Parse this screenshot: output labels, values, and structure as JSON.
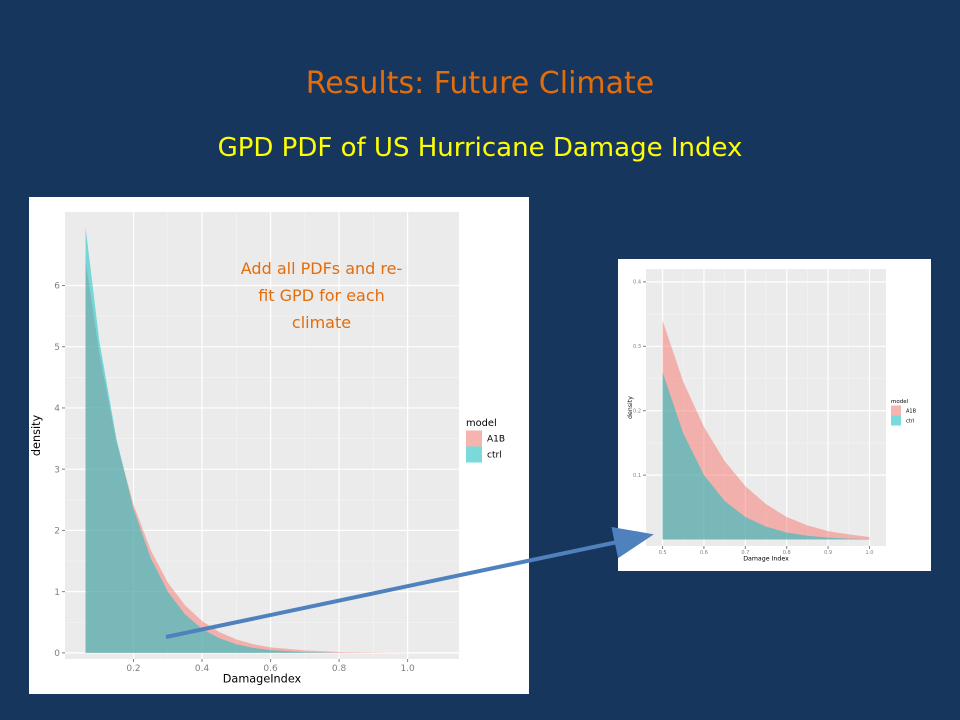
{
  "slide": {
    "title": "Results: Future Climate",
    "subtitle": "GPD PDF of US Hurricane Damage Index",
    "annotation": "Add all PDFs and re-fit GPD for each climate",
    "background": "#17365d",
    "title_color": "#e46c0a",
    "subtitle_color": "#ffff00",
    "arrow_color": "#4f81bd"
  },
  "chart_data": [
    {
      "type": "area",
      "title": "",
      "xlabel": "DamageIndex",
      "ylabel": "density",
      "xlim": [
        0.0,
        1.15
      ],
      "ylim": [
        -0.1,
        7.2
      ],
      "xticks": [
        "0.2",
        "0.4",
        "0.6",
        "0.8",
        "1.0"
      ],
      "xtick_values": [
        0.2,
        0.4,
        0.6,
        0.8,
        1.0
      ],
      "yticks": [
        "0",
        "1",
        "2",
        "3",
        "4",
        "5",
        "6"
      ],
      "ytick_values": [
        0,
        1,
        2,
        3,
        4,
        5,
        6
      ],
      "grid": true,
      "legend": {
        "title": "model",
        "placement": "right"
      },
      "series": [
        {
          "name": "A1B",
          "color": "#f8766d",
          "x": [
            0.06,
            0.1,
            0.15,
            0.2,
            0.25,
            0.3,
            0.35,
            0.4,
            0.45,
            0.5,
            0.55,
            0.6,
            0.7,
            0.8,
            0.9,
            1.0
          ],
          "values": [
            6.4,
            4.9,
            3.45,
            2.42,
            1.68,
            1.15,
            0.78,
            0.52,
            0.34,
            0.22,
            0.14,
            0.09,
            0.04,
            0.015,
            0.006,
            0.002
          ]
        },
        {
          "name": "ctrl",
          "color": "#00bfc4",
          "x": [
            0.06,
            0.1,
            0.15,
            0.2,
            0.25,
            0.3,
            0.35,
            0.4,
            0.45,
            0.5,
            0.55,
            0.6,
            0.7,
            0.8
          ],
          "values": [
            6.95,
            5.1,
            3.5,
            2.35,
            1.55,
            1.0,
            0.63,
            0.39,
            0.24,
            0.14,
            0.08,
            0.045,
            0.012,
            0.003
          ]
        }
      ]
    },
    {
      "type": "area",
      "title": "",
      "xlabel": "Damage Index",
      "ylabel": "density",
      "xlim": [
        0.46,
        1.04
      ],
      "ylim": [
        -0.01,
        0.42
      ],
      "xticks": [
        "0.5",
        "0.6",
        "0.7",
        "0.8",
        "0.9",
        "1.0"
      ],
      "xtick_values": [
        0.5,
        0.6,
        0.7,
        0.8,
        0.9,
        1.0
      ],
      "yticks": [
        "0.1",
        "0.2",
        "0.3",
        "0.4"
      ],
      "ytick_values": [
        0.1,
        0.2,
        0.3,
        0.4
      ],
      "grid": true,
      "legend": {
        "title": "model",
        "placement": "right"
      },
      "series": [
        {
          "name": "A1B",
          "color": "#f8766d",
          "x": [
            0.5,
            0.55,
            0.6,
            0.65,
            0.7,
            0.75,
            0.8,
            0.85,
            0.9,
            0.95,
            1.0
          ],
          "values": [
            0.34,
            0.245,
            0.175,
            0.122,
            0.083,
            0.055,
            0.035,
            0.022,
            0.013,
            0.008,
            0.004
          ]
        },
        {
          "name": "ctrl",
          "color": "#00bfc4",
          "x": [
            0.5,
            0.55,
            0.6,
            0.65,
            0.7,
            0.75,
            0.8,
            0.85,
            0.9,
            0.95,
            1.0
          ],
          "values": [
            0.26,
            0.165,
            0.1,
            0.06,
            0.035,
            0.02,
            0.011,
            0.006,
            0.003,
            0.0015,
            0.0008
          ]
        }
      ]
    }
  ]
}
